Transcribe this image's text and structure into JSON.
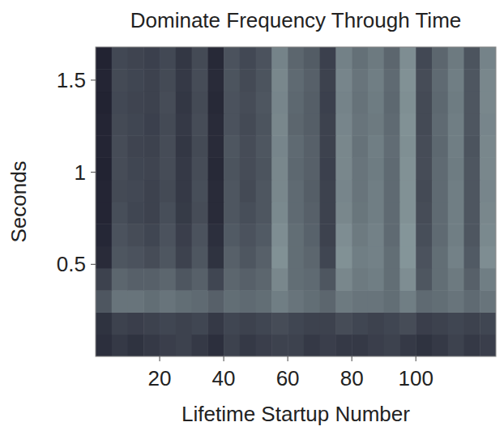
{
  "chart_data": {
    "type": "heatmap",
    "title": "Dominate Frequency Through Time",
    "x_label": "Lifetime Startup Number",
    "y_label": "Seconds",
    "xlim": [
      0,
      125
    ],
    "ylim": [
      0,
      1.68
    ],
    "xticks": [
      20,
      40,
      60,
      80,
      100
    ],
    "yticks": [
      0.5,
      1,
      1.5
    ],
    "zlim": [
      0,
      1
    ],
    "x_bins": [
      0,
      5,
      10,
      15,
      20,
      25,
      30,
      35,
      40,
      45,
      50,
      55,
      60,
      65,
      70,
      75,
      80,
      85,
      90,
      95,
      100,
      105,
      110,
      115,
      120,
      125
    ],
    "y_bins": [
      0,
      0.12,
      0.24,
      0.36,
      0.48,
      0.6,
      0.72,
      0.84,
      0.96,
      1.08,
      1.2,
      1.32,
      1.44,
      1.56,
      1.68
    ],
    "cells": [
      [
        0.1,
        0.15,
        0.12,
        0.15,
        0.18,
        0.2,
        0.15,
        0.1,
        0.2,
        0.15,
        0.18,
        0.2,
        0.2,
        0.15,
        0.18,
        0.15,
        0.15,
        0.18,
        0.2,
        0.15,
        0.12,
        0.15,
        0.2,
        0.15,
        0.18
      ],
      [
        0.12,
        0.2,
        0.18,
        0.2,
        0.22,
        0.2,
        0.22,
        0.15,
        0.22,
        0.2,
        0.22,
        0.25,
        0.22,
        0.2,
        0.2,
        0.25,
        0.22,
        0.2,
        0.22,
        0.25,
        0.18,
        0.2,
        0.22,
        0.2,
        0.22
      ],
      [
        0.3,
        0.45,
        0.45,
        0.42,
        0.45,
        0.42,
        0.4,
        0.35,
        0.42,
        0.4,
        0.42,
        0.5,
        0.45,
        0.42,
        0.38,
        0.48,
        0.45,
        0.45,
        0.42,
        0.5,
        0.4,
        0.42,
        0.45,
        0.4,
        0.45
      ],
      [
        0.2,
        0.38,
        0.35,
        0.35,
        0.38,
        0.3,
        0.35,
        0.22,
        0.38,
        0.35,
        0.38,
        0.55,
        0.42,
        0.4,
        0.3,
        0.55,
        0.48,
        0.5,
        0.42,
        0.58,
        0.3,
        0.42,
        0.48,
        0.35,
        0.5
      ],
      [
        0.08,
        0.3,
        0.28,
        0.25,
        0.3,
        0.2,
        0.3,
        0.12,
        0.35,
        0.3,
        0.35,
        0.6,
        0.42,
        0.38,
        0.22,
        0.6,
        0.5,
        0.52,
        0.42,
        0.62,
        0.28,
        0.42,
        0.52,
        0.32,
        0.58
      ],
      [
        0.06,
        0.28,
        0.25,
        0.22,
        0.28,
        0.18,
        0.28,
        0.1,
        0.32,
        0.28,
        0.32,
        0.58,
        0.42,
        0.36,
        0.2,
        0.58,
        0.48,
        0.52,
        0.4,
        0.62,
        0.26,
        0.4,
        0.5,
        0.3,
        0.56
      ],
      [
        0.05,
        0.26,
        0.22,
        0.2,
        0.26,
        0.16,
        0.25,
        0.08,
        0.3,
        0.26,
        0.3,
        0.56,
        0.4,
        0.35,
        0.2,
        0.55,
        0.46,
        0.5,
        0.4,
        0.6,
        0.25,
        0.4,
        0.5,
        0.3,
        0.55
      ],
      [
        0.05,
        0.24,
        0.23,
        0.2,
        0.24,
        0.15,
        0.26,
        0.08,
        0.3,
        0.24,
        0.3,
        0.55,
        0.4,
        0.34,
        0.2,
        0.54,
        0.45,
        0.5,
        0.4,
        0.6,
        0.24,
        0.4,
        0.5,
        0.3,
        0.54
      ],
      [
        0.04,
        0.25,
        0.22,
        0.21,
        0.25,
        0.15,
        0.25,
        0.07,
        0.29,
        0.25,
        0.29,
        0.55,
        0.39,
        0.35,
        0.19,
        0.55,
        0.45,
        0.49,
        0.4,
        0.6,
        0.25,
        0.4,
        0.49,
        0.3,
        0.55
      ],
      [
        0.05,
        0.25,
        0.21,
        0.2,
        0.25,
        0.14,
        0.24,
        0.08,
        0.3,
        0.25,
        0.3,
        0.54,
        0.4,
        0.35,
        0.2,
        0.55,
        0.44,
        0.5,
        0.41,
        0.59,
        0.25,
        0.39,
        0.5,
        0.29,
        0.55
      ],
      [
        0.05,
        0.24,
        0.22,
        0.19,
        0.24,
        0.15,
        0.25,
        0.08,
        0.28,
        0.24,
        0.29,
        0.55,
        0.38,
        0.34,
        0.2,
        0.54,
        0.45,
        0.48,
        0.4,
        0.6,
        0.24,
        0.4,
        0.5,
        0.3,
        0.54
      ],
      [
        0.04,
        0.23,
        0.21,
        0.2,
        0.25,
        0.14,
        0.24,
        0.07,
        0.28,
        0.25,
        0.3,
        0.54,
        0.39,
        0.34,
        0.19,
        0.53,
        0.44,
        0.49,
        0.39,
        0.59,
        0.24,
        0.39,
        0.49,
        0.3,
        0.55
      ],
      [
        0.05,
        0.24,
        0.22,
        0.2,
        0.24,
        0.15,
        0.25,
        0.08,
        0.29,
        0.24,
        0.29,
        0.55,
        0.4,
        0.35,
        0.2,
        0.54,
        0.45,
        0.5,
        0.4,
        0.6,
        0.25,
        0.4,
        0.5,
        0.3,
        0.55
      ],
      [
        0.04,
        0.23,
        0.21,
        0.19,
        0.23,
        0.14,
        0.24,
        0.07,
        0.28,
        0.23,
        0.28,
        0.53,
        0.38,
        0.33,
        0.19,
        0.52,
        0.43,
        0.48,
        0.38,
        0.58,
        0.23,
        0.38,
        0.48,
        0.29,
        0.53
      ]
    ]
  }
}
